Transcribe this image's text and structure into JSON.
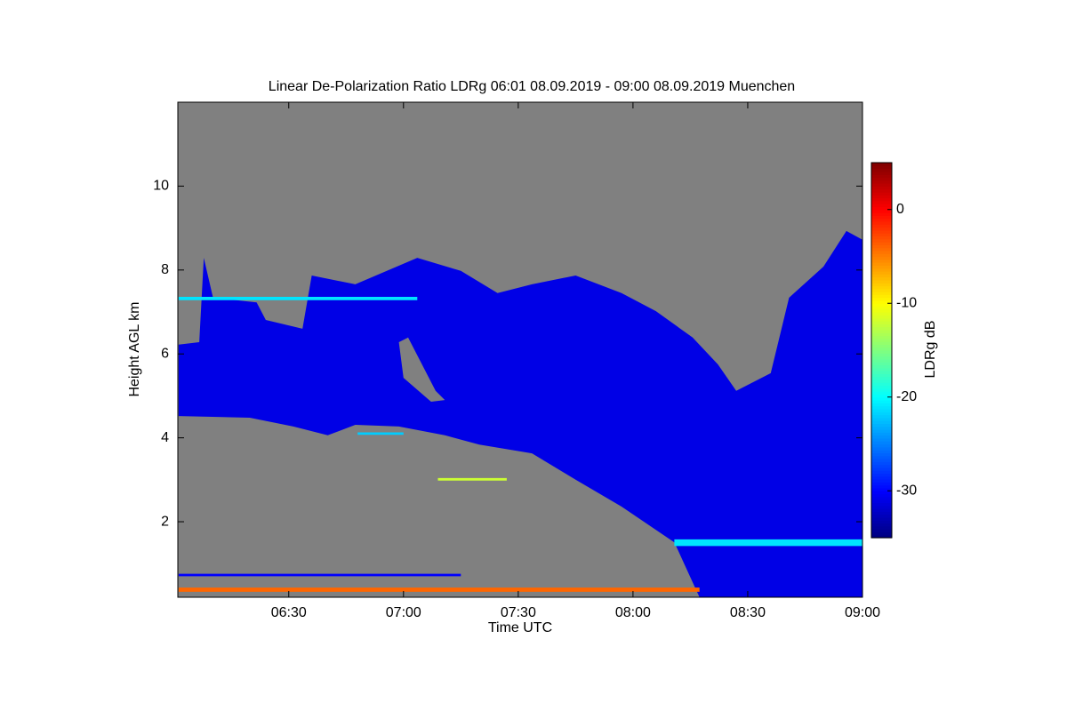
{
  "chart_data": {
    "type": "heatmap",
    "title": "Linear De-Polarization Ratio LDRg   06:01 08.09.2019 - 09:00 08.09.2019 Muenchen",
    "x_label": "Time UTC",
    "y_label": "Height AGL km",
    "colorbar_label": "LDRg dB",
    "colormap": "jet",
    "background": "#808080",
    "xlim": [
      6.0167,
      9.0
    ],
    "xticks": [
      {
        "value": 6.5,
        "label": "06:30"
      },
      {
        "value": 7.0,
        "label": "07:00"
      },
      {
        "value": 7.5,
        "label": "07:30"
      },
      {
        "value": 8.0,
        "label": "08:00"
      },
      {
        "value": 8.5,
        "label": "08:30"
      },
      {
        "value": 9.0,
        "label": "09:00"
      }
    ],
    "ylim": [
      0.2,
      12
    ],
    "yticks": [
      2,
      4,
      6,
      8,
      10
    ],
    "clim": [
      -35,
      5
    ],
    "cticks": [
      0,
      -10,
      -20,
      -30
    ],
    "layers": [
      {
        "value": -31,
        "x": [
          6.02,
          6.11,
          6.13,
          6.17,
          6.36,
          6.4,
          6.56,
          6.6,
          6.79,
          7.06,
          7.25,
          7.41,
          7.56,
          7.75,
          7.95,
          8.1,
          8.26,
          8.37,
          8.45,
          8.6,
          8.68,
          8.83,
          8.93,
          9.0,
          9.0,
          8.29,
          8.18,
          7.95,
          7.75,
          7.56,
          7.33,
          7.18,
          6.98,
          6.79,
          6.67,
          6.52,
          6.33,
          6.02
        ],
        "y": [
          6.22,
          6.28,
          8.29,
          7.34,
          7.23,
          6.81,
          6.6,
          7.87,
          7.66,
          8.29,
          7.98,
          7.45,
          7.66,
          7.87,
          7.45,
          7.02,
          6.39,
          5.75,
          5.12,
          5.54,
          7.34,
          8.08,
          8.93,
          8.72,
          0.2,
          0.2,
          1.51,
          2.36,
          3.0,
          3.63,
          3.84,
          4.06,
          4.27,
          4.31,
          4.06,
          4.27,
          4.48,
          4.52
        ]
      },
      {
        "value": null,
        "x": [
          6.98,
          7.02,
          7.14,
          7.18,
          7.12,
          7.0
        ],
        "y": [
          6.28,
          6.39,
          5.12,
          4.9,
          4.86,
          5.43
        ]
      },
      {
        "value": -21,
        "x": [
          8.18,
          9.0,
          9.0,
          8.18
        ],
        "y": [
          1.42,
          1.42,
          1.58,
          1.58
        ]
      },
      {
        "value": -4,
        "x": [
          6.02,
          8.29,
          8.29,
          6.02
        ],
        "y": [
          0.33,
          0.33,
          0.43,
          0.43
        ]
      },
      {
        "value": -30,
        "x": [
          6.02,
          7.25,
          7.25,
          6.02
        ],
        "y": [
          0.7,
          0.7,
          0.76,
          0.76
        ]
      },
      {
        "value": -21,
        "x": [
          6.02,
          7.06,
          7.06,
          6.02
        ],
        "y": [
          7.28,
          7.28,
          7.36,
          7.36
        ]
      },
      {
        "value": -12,
        "x": [
          7.15,
          7.45,
          7.45,
          7.15
        ],
        "y": [
          2.98,
          2.98,
          3.04,
          3.04
        ]
      },
      {
        "value": -22,
        "x": [
          6.8,
          7.0,
          7.0,
          6.8
        ],
        "y": [
          4.07,
          4.07,
          4.13,
          4.13
        ]
      }
    ]
  }
}
